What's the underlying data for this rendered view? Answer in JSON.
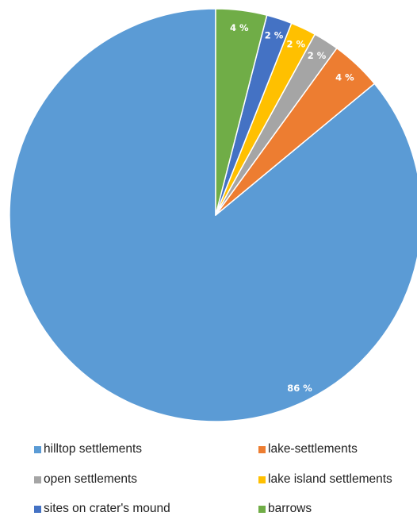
{
  "chart_data": {
    "type": "pie",
    "categories": [
      "hilltop settlements",
      "lake-settlements",
      "open settlements",
      "lake island settlements",
      "sites on crater's mound",
      "barrows"
    ],
    "values": [
      86,
      4,
      2,
      2,
      2,
      4
    ],
    "labels": [
      "86 %",
      "4 %",
      "2 %",
      "2 %",
      "2 %",
      "4 %"
    ],
    "colors": [
      "#5B9BD5",
      "#ED7D31",
      "#A5A5A5",
      "#FFC000",
      "#4472C4",
      "#70AD47"
    ],
    "start_angle_deg": 0,
    "direction": "counterclockwise",
    "legend_position": "bottom"
  }
}
